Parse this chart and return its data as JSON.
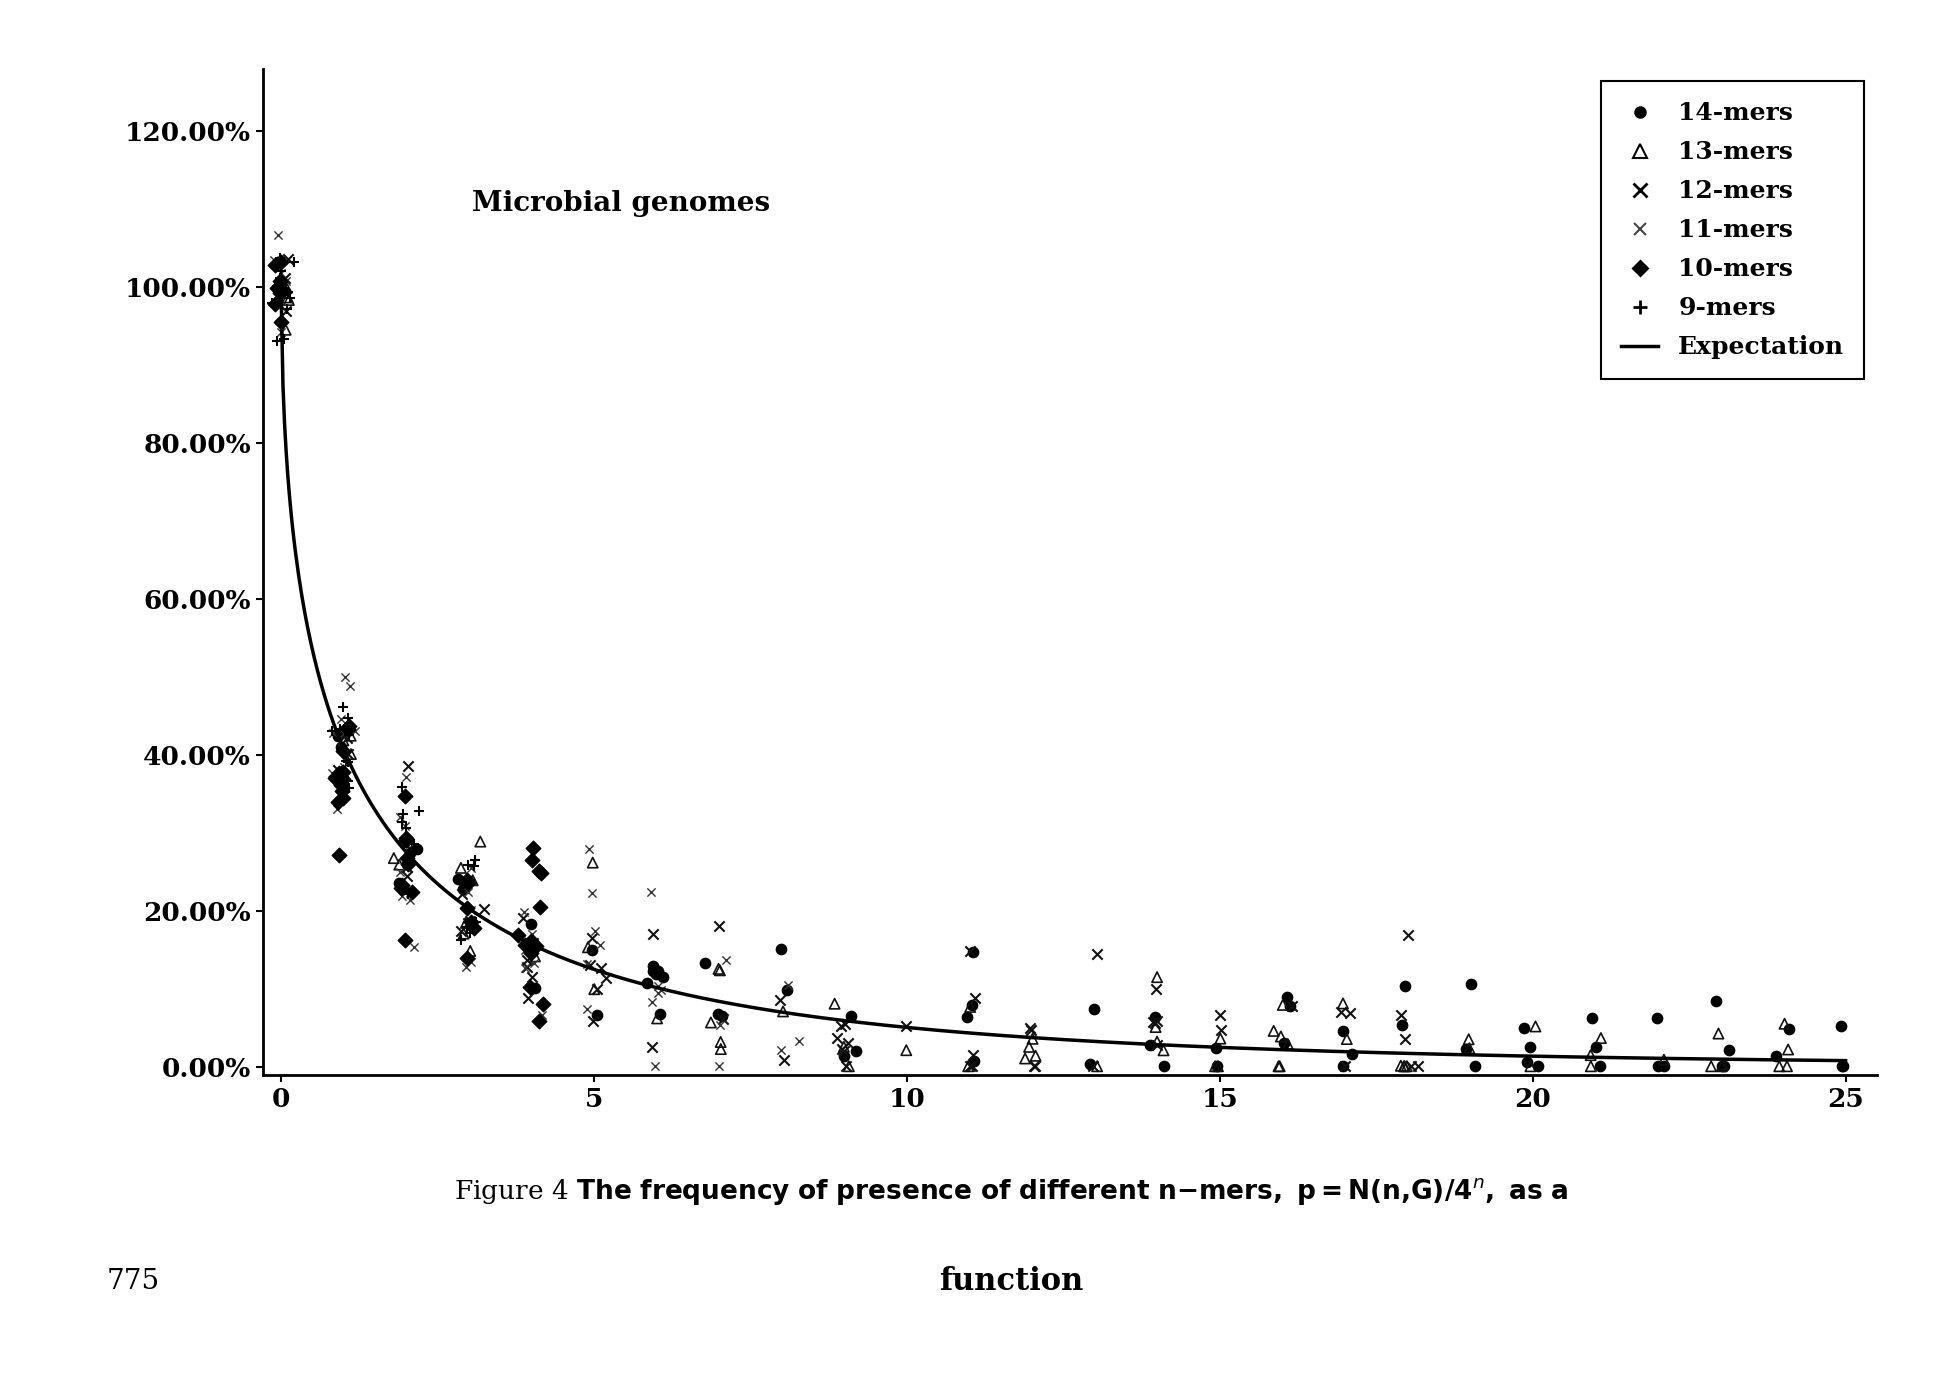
{
  "title_annotation": "Microbial genomes",
  "xlim": [
    -0.3,
    25.5
  ],
  "ylim": [
    -0.01,
    1.28
  ],
  "yticks": [
    0.0,
    0.2,
    0.4,
    0.6,
    0.8,
    1.0,
    1.2
  ],
  "ytick_labels": [
    "0.00%",
    "20.00%",
    "40.00%",
    "60.00%",
    "80.00%",
    "100.00%",
    "120.00%"
  ],
  "xticks": [
    0,
    5,
    10,
    15,
    20,
    25
  ],
  "background_color": "#ffffff",
  "caption_parts": [
    {
      "text": "Figure 4 ",
      "italic": false,
      "bold": false
    },
    {
      "text": "The frequency of presence of different ",
      "italic": false,
      "bold": true
    },
    {
      "text": "n",
      "italic": true,
      "bold": true
    },
    {
      "text": "-mers, ",
      "italic": false,
      "bold": true
    },
    {
      "text": "p",
      "italic": true,
      "bold": true
    },
    {
      "text": "=",
      "italic": false,
      "bold": true
    },
    {
      "text": "N(",
      "italic": false,
      "bold": true
    },
    {
      "text": "n",
      "italic": true,
      "bold": true
    },
    {
      "text": ",",
      "italic": false,
      "bold": true
    },
    {
      "text": "G",
      "italic": true,
      "bold": true
    },
    {
      "text": ")/4",
      "italic": false,
      "bold": true
    },
    {
      "text": "n",
      "italic": true,
      "bold": true,
      "superscript": true
    },
    {
      "text": ", as a",
      "italic": false,
      "bold": true
    }
  ],
  "caption2": "function",
  "page_num": "775",
  "legend_labels": [
    "14-mers",
    "13-mers",
    "12-mers",
    "11-mers",
    "10-mers",
    "9-mers",
    "Expectation"
  ]
}
